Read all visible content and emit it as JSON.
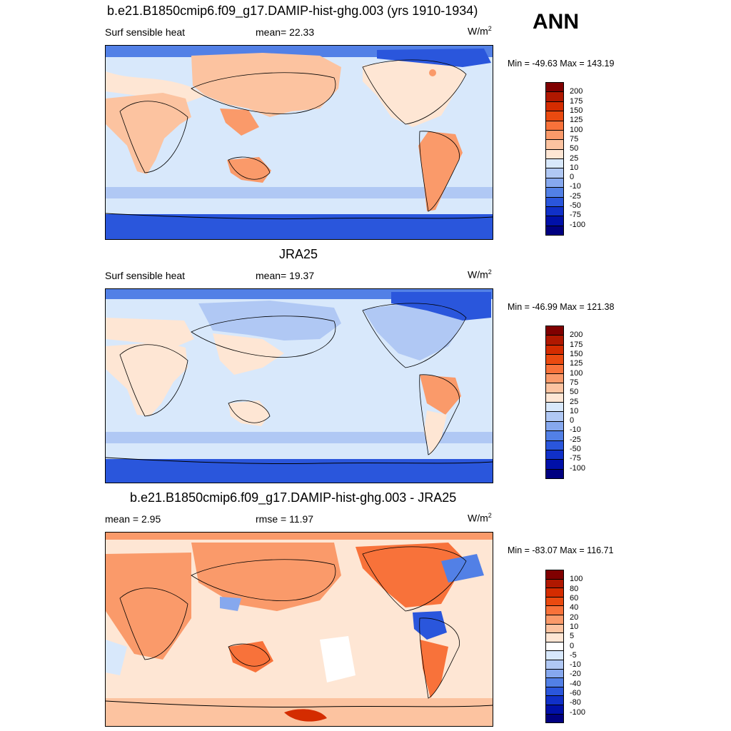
{
  "season": "ANN",
  "panels": [
    {
      "title": "b.e21.B1850cmip6.f09_g17.DAMIP-hist-ghg.003 (yrs 1910-1934)",
      "left_label": "Surf sensible heat",
      "center_label": "mean=  22.33",
      "unit_base": "W/m",
      "unit_exp": "2",
      "minmax": "Min = -49.63 Max = 143.19",
      "colorbar_labels": [
        "200",
        "175",
        "150",
        "125",
        "100",
        "75",
        "50",
        "25",
        "10",
        "0",
        "-10",
        "-25",
        "-50",
        "-75",
        "-100"
      ]
    },
    {
      "title": "JRA25",
      "left_label": "Surf sensible heat",
      "center_label": "mean=  19.37",
      "unit_base": "W/m",
      "unit_exp": "2",
      "minmax": "Min = -46.99 Max = 121.38",
      "colorbar_labels": [
        "200",
        "175",
        "150",
        "125",
        "100",
        "75",
        "50",
        "25",
        "10",
        "0",
        "-10",
        "-25",
        "-50",
        "-75",
        "-100"
      ]
    },
    {
      "title": "b.e21.B1850cmip6.f09_g17.DAMIP-hist-ghg.003 - JRA25",
      "left_label": "mean =   2.95",
      "center_label": "rmse =  11.97",
      "unit_base": "W/m",
      "unit_exp": "2",
      "minmax": "Min = -83.07 Max = 116.71",
      "colorbar_labels": [
        "100",
        "80",
        "60",
        "40",
        "20",
        "10",
        "5",
        "0",
        "-5",
        "-10",
        "-20",
        "-40",
        "-60",
        "-80",
        "-100"
      ]
    }
  ],
  "colors": {
    "field_scale": [
      "#800000",
      "#b01800",
      "#d42c00",
      "#ea4a10",
      "#f8723a",
      "#fa9a6a",
      "#fcc3a0",
      "#fee6d4",
      "#d8e8fb",
      "#b0c8f4",
      "#86a8ee",
      "#5280e6",
      "#2a56dc",
      "#1030c8",
      "#0010a8",
      "#000080"
    ],
    "diff_scale": [
      "#800000",
      "#b01800",
      "#d42c00",
      "#ea4a10",
      "#f8723a",
      "#fa9a6a",
      "#fcc3a0",
      "#fee6d4",
      "#ffffff",
      "#d8e8fb",
      "#b0c8f4",
      "#86a8ee",
      "#5280e6",
      "#2a56dc",
      "#1030c8",
      "#0010a8",
      "#000080"
    ],
    "coastline": "#000000"
  }
}
